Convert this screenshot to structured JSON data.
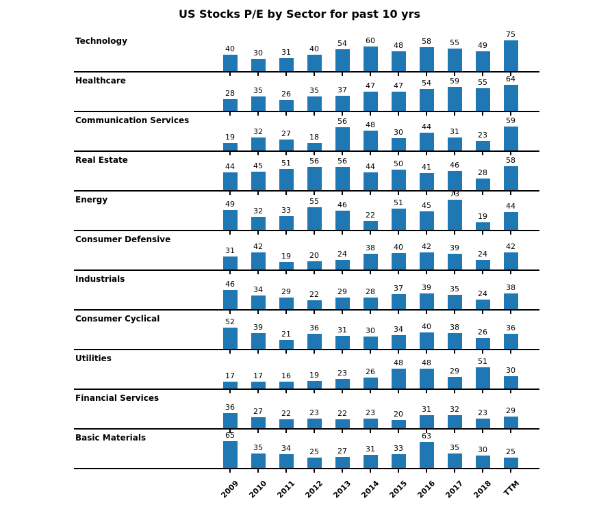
{
  "chart_data": {
    "type": "bar",
    "title": "US Stocks P/E by Sector for past 10 yrs",
    "categories": [
      "2009",
      "2010",
      "2011",
      "2012",
      "2013",
      "2014",
      "2015",
      "2016",
      "2017",
      "2018",
      "TTM"
    ],
    "series": [
      {
        "name": "Technology",
        "values": [
          40,
          30,
          31,
          40,
          54,
          60,
          48,
          58,
          55,
          49,
          75
        ]
      },
      {
        "name": "Healthcare",
        "values": [
          28,
          35,
          26,
          35,
          37,
          47,
          47,
          54,
          59,
          55,
          64
        ]
      },
      {
        "name": "Communication Services",
        "values": [
          19,
          32,
          27,
          18,
          56,
          48,
          30,
          44,
          31,
          23,
          59
        ]
      },
      {
        "name": "Real Estate",
        "values": [
          44,
          45,
          51,
          56,
          56,
          44,
          50,
          41,
          46,
          28,
          58
        ]
      },
      {
        "name": "Energy",
        "values": [
          49,
          32,
          33,
          55,
          46,
          22,
          51,
          45,
          73,
          19,
          44
        ]
      },
      {
        "name": "Consumer Defensive",
        "values": [
          31,
          42,
          19,
          20,
          24,
          38,
          40,
          42,
          39,
          24,
          42
        ]
      },
      {
        "name": "Industrials",
        "values": [
          46,
          34,
          29,
          22,
          29,
          28,
          37,
          39,
          35,
          24,
          38
        ]
      },
      {
        "name": "Consumer Cyclical",
        "values": [
          52,
          39,
          21,
          36,
          31,
          30,
          34,
          40,
          38,
          26,
          36
        ]
      },
      {
        "name": "Utilities",
        "values": [
          17,
          17,
          16,
          19,
          23,
          26,
          48,
          48,
          29,
          51,
          30
        ]
      },
      {
        "name": "Financial Services",
        "values": [
          36,
          27,
          22,
          23,
          22,
          23,
          20,
          31,
          32,
          23,
          29
        ]
      },
      {
        "name": "Basic Materials",
        "values": [
          65,
          35,
          34,
          25,
          27,
          31,
          33,
          63,
          35,
          30,
          25
        ]
      }
    ],
    "layout": {
      "style": "small-multiples-rows",
      "shared_ylim": [
        0,
        80
      ],
      "value_labels": true,
      "grid": false,
      "legend": "none",
      "bar_color": "#1f77b4",
      "axis_color": "#000000",
      "x_tick_label_rotation_deg": 45
    }
  }
}
